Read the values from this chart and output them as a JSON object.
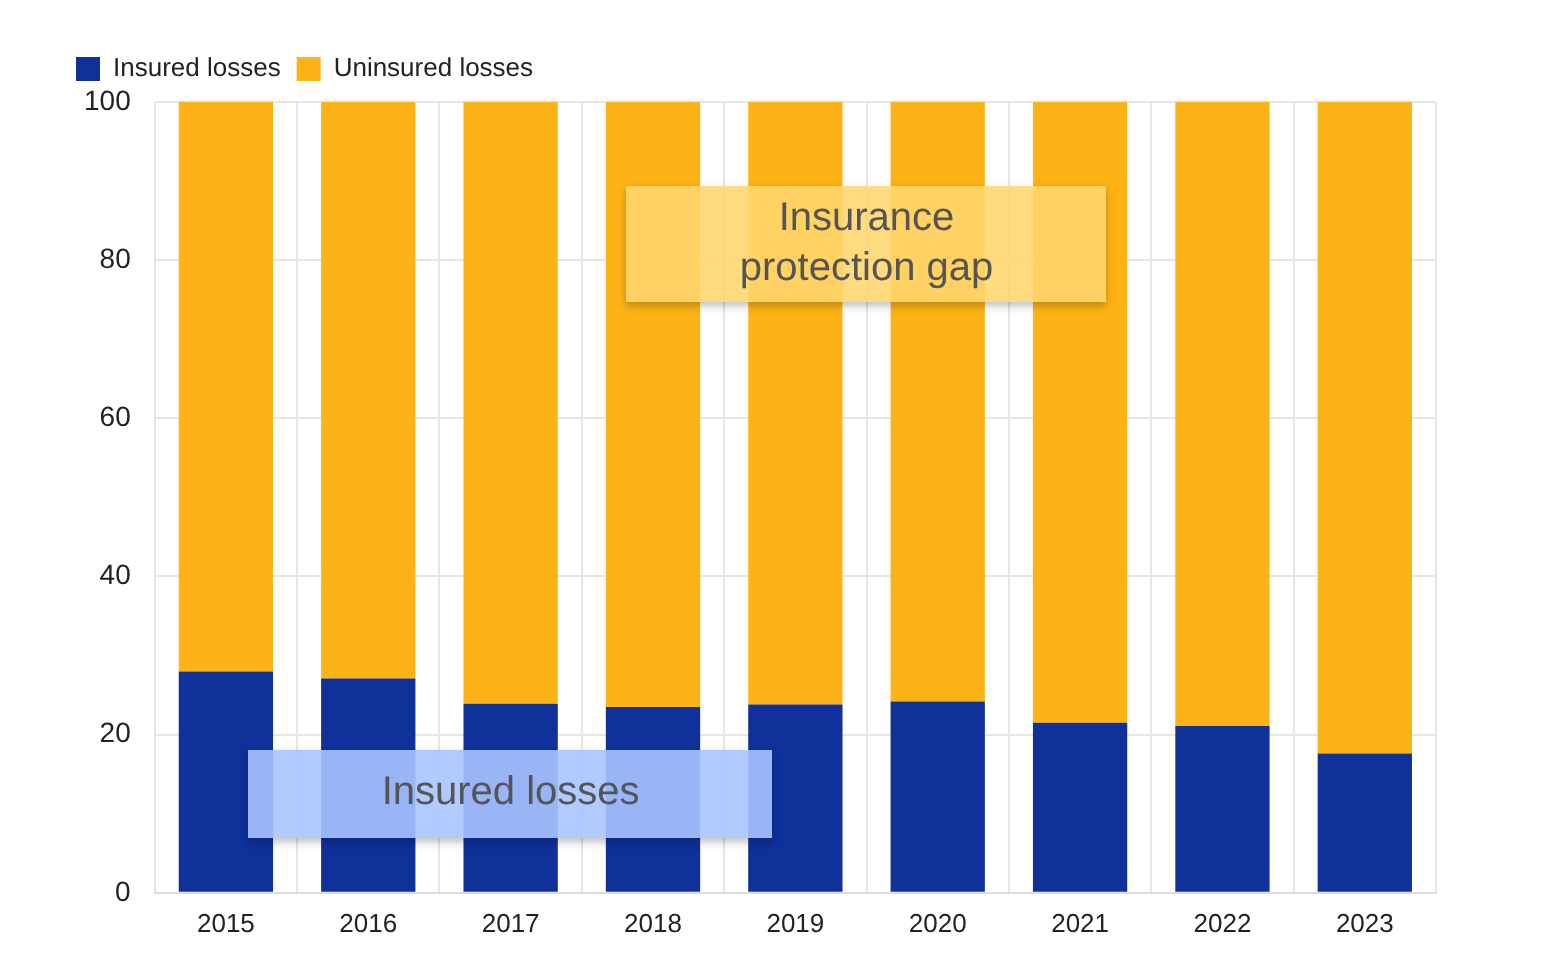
{
  "chart_data": {
    "type": "bar",
    "stacked": true,
    "categories": [
      "2015",
      "2016",
      "2017",
      "2018",
      "2019",
      "2020",
      "2021",
      "2022",
      "2023"
    ],
    "series": [
      {
        "name": "Insured losses",
        "color": "#10309a",
        "values": [
          28.0,
          27.1,
          23.9,
          23.5,
          23.8,
          24.2,
          21.5,
          21.1,
          17.6
        ]
      },
      {
        "name": "Uninsured losses",
        "color": "#fdb316",
        "values": [
          72.0,
          72.9,
          76.1,
          76.5,
          76.2,
          75.8,
          78.5,
          78.9,
          82.4
        ]
      }
    ],
    "ylim": [
      0,
      100
    ],
    "yticks": [
      0,
      20,
      40,
      60,
      80,
      100
    ],
    "grid": true,
    "legend": "top left",
    "annotations": [
      "Insurance protection gap",
      "Insured losses"
    ]
  }
}
